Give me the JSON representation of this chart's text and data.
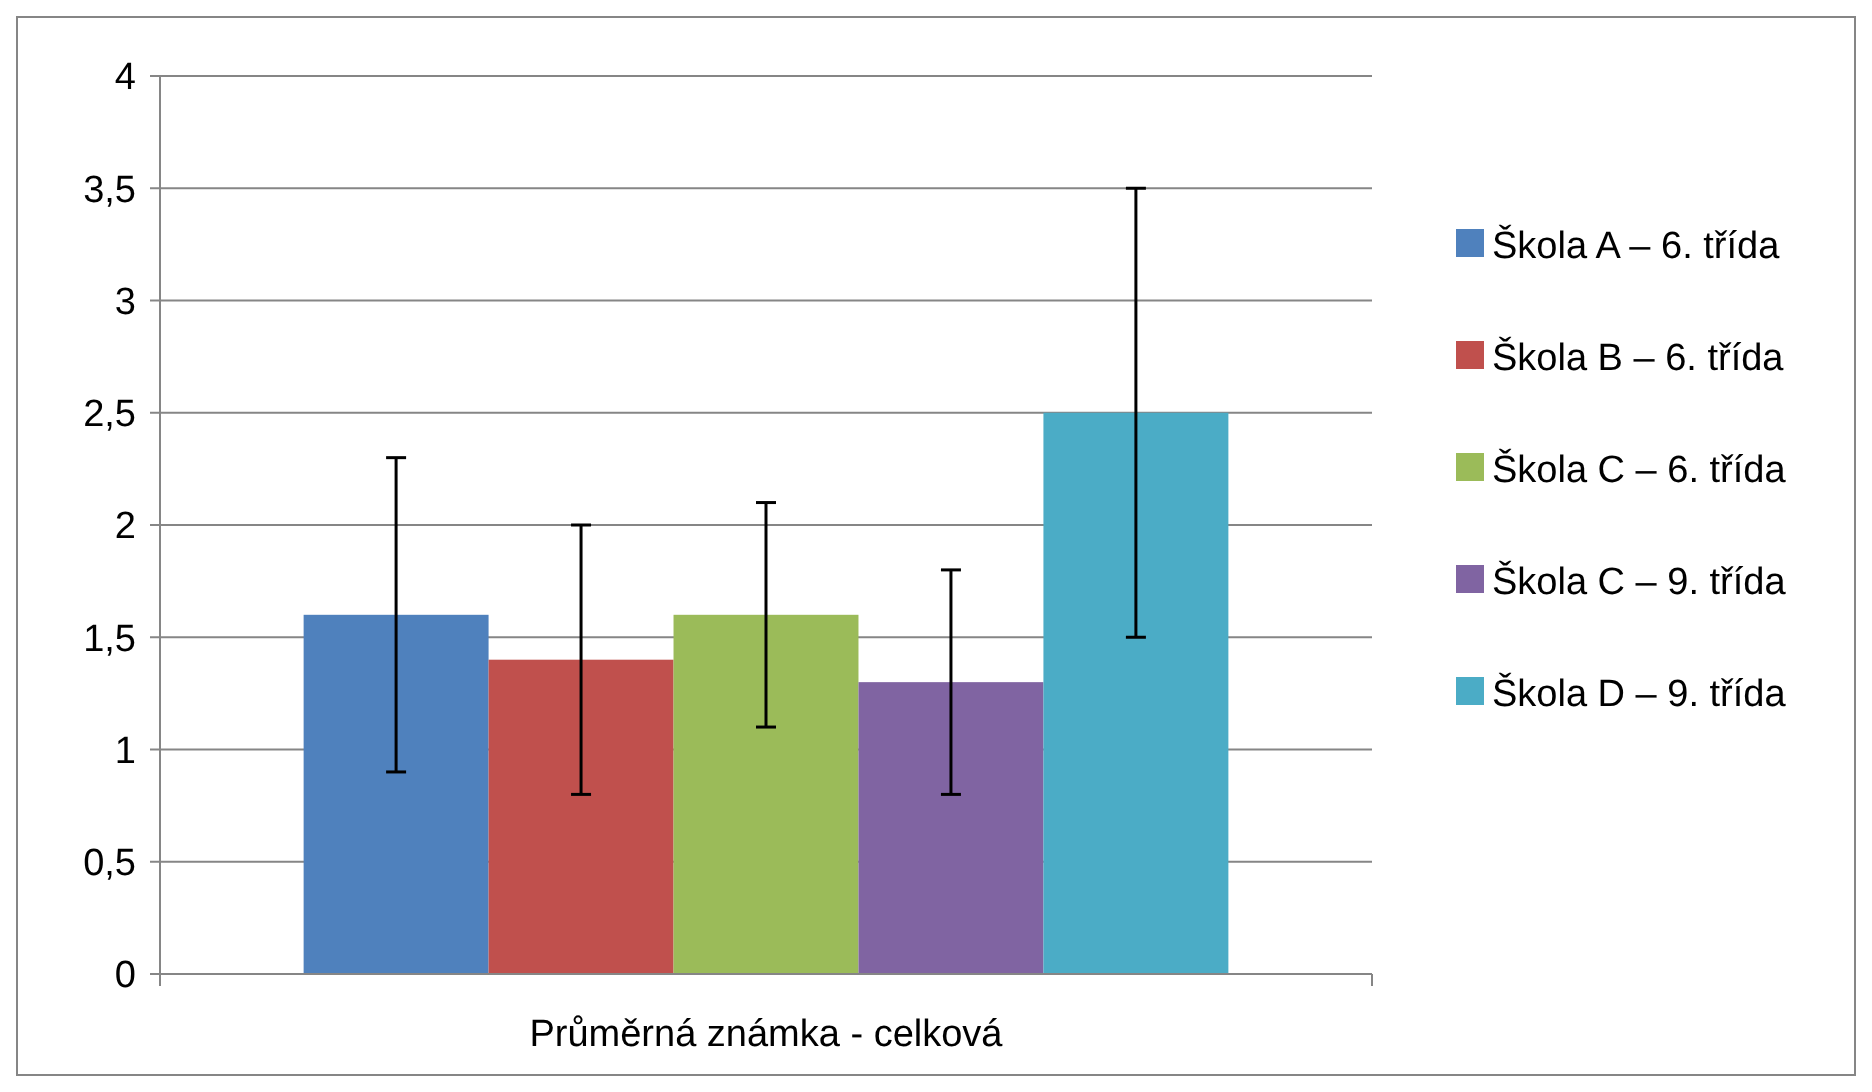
{
  "chart_data": {
    "type": "bar",
    "categories": [
      "Průměrná známka - celková"
    ],
    "series": [
      {
        "name": "Škola A – 6. třída",
        "color": "#4f81bd",
        "values": [
          1.6
        ],
        "errors": [
          0.7
        ]
      },
      {
        "name": "Škola B – 6. třída",
        "color": "#c0504d",
        "values": [
          1.4
        ],
        "errors": [
          0.6
        ]
      },
      {
        "name": "Škola C – 6. třída",
        "color": "#9bbb59",
        "values": [
          1.6
        ],
        "errors": [
          0.5
        ]
      },
      {
        "name": "Škola C – 9. třída",
        "color": "#8064a2",
        "values": [
          1.3
        ],
        "errors": [
          0.5
        ]
      },
      {
        "name": "Škola D – 9. třída",
        "color": "#4bacc6",
        "values": [
          2.5
        ],
        "errors": [
          1.0
        ]
      }
    ],
    "ylim": [
      0,
      4
    ],
    "yticks": [
      0,
      {
        "value": 0.5,
        "label": "0,5"
      },
      1,
      {
        "value": 1.5,
        "label": "1,5"
      },
      2,
      {
        "value": 2.5,
        "label": "2,5"
      },
      3,
      {
        "value": 3.5,
        "label": "3,5"
      },
      4
    ],
    "grid": "y",
    "legend": "right"
  }
}
